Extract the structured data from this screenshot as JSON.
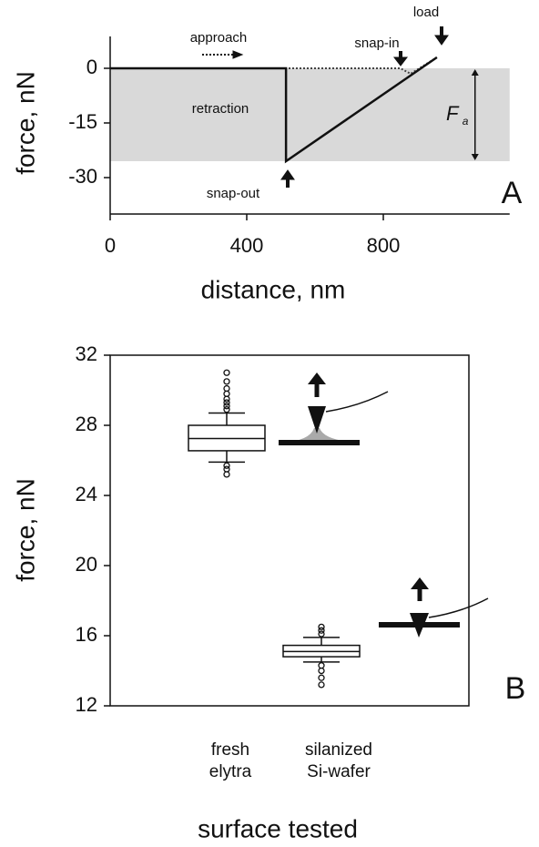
{
  "chart_data": [
    {
      "type": "line",
      "panel_label": "A",
      "x_label": "distance, nm",
      "y_label": "force, nN",
      "xlim": [
        0,
        1170
      ],
      "ylim": [
        -40,
        8.75
      ],
      "xticks": [
        0,
        400,
        800
      ],
      "yticks": [
        0,
        -15,
        -30
      ],
      "series": [
        {
          "name": "approach",
          "color": "#444444",
          "dashed": true,
          "x": [
            0,
            850,
            880,
            957
          ],
          "y": [
            0,
            0,
            -1.5,
            3
          ]
        },
        {
          "name": "retraction",
          "color": "#111111",
          "dashed": false,
          "x": [
            957,
            515,
            515,
            0
          ],
          "y": [
            3,
            -25.5,
            0,
            0
          ]
        }
      ],
      "annotations": [
        "snap-in",
        "load",
        "snap-out"
      ],
      "adhesion_force": -25.5,
      "adhesion_label": "F",
      "adhesion_label_subscript": "a",
      "shade_color": "#d9d9d9"
    },
    {
      "type": "box",
      "panel_label": "B",
      "x_label": "surface tested",
      "y_label": "force, nN",
      "ylim": [
        12,
        32
      ],
      "yticks": [
        12,
        16,
        20,
        24,
        28,
        32
      ],
      "categories": [
        "fresh\nelytra",
        "silanized\nSi-wafer"
      ],
      "boxes": [
        {
          "whislo": 25.9,
          "q1": 26.55,
          "med": 27.25,
          "q3": 28.0,
          "whishi": 28.7,
          "fliers": [
            28.9,
            29.1,
            29.3,
            29.5,
            29.8,
            30.1,
            30.5,
            31.0,
            25.7,
            25.5,
            25.2
          ]
        },
        {
          "whislo": 14.5,
          "q1": 14.8,
          "med": 15.1,
          "q3": 15.45,
          "whishi": 15.9,
          "fliers": [
            16.1,
            16.3,
            16.5,
            14.3,
            14.0,
            13.6,
            13.2
          ]
        }
      ]
    }
  ]
}
